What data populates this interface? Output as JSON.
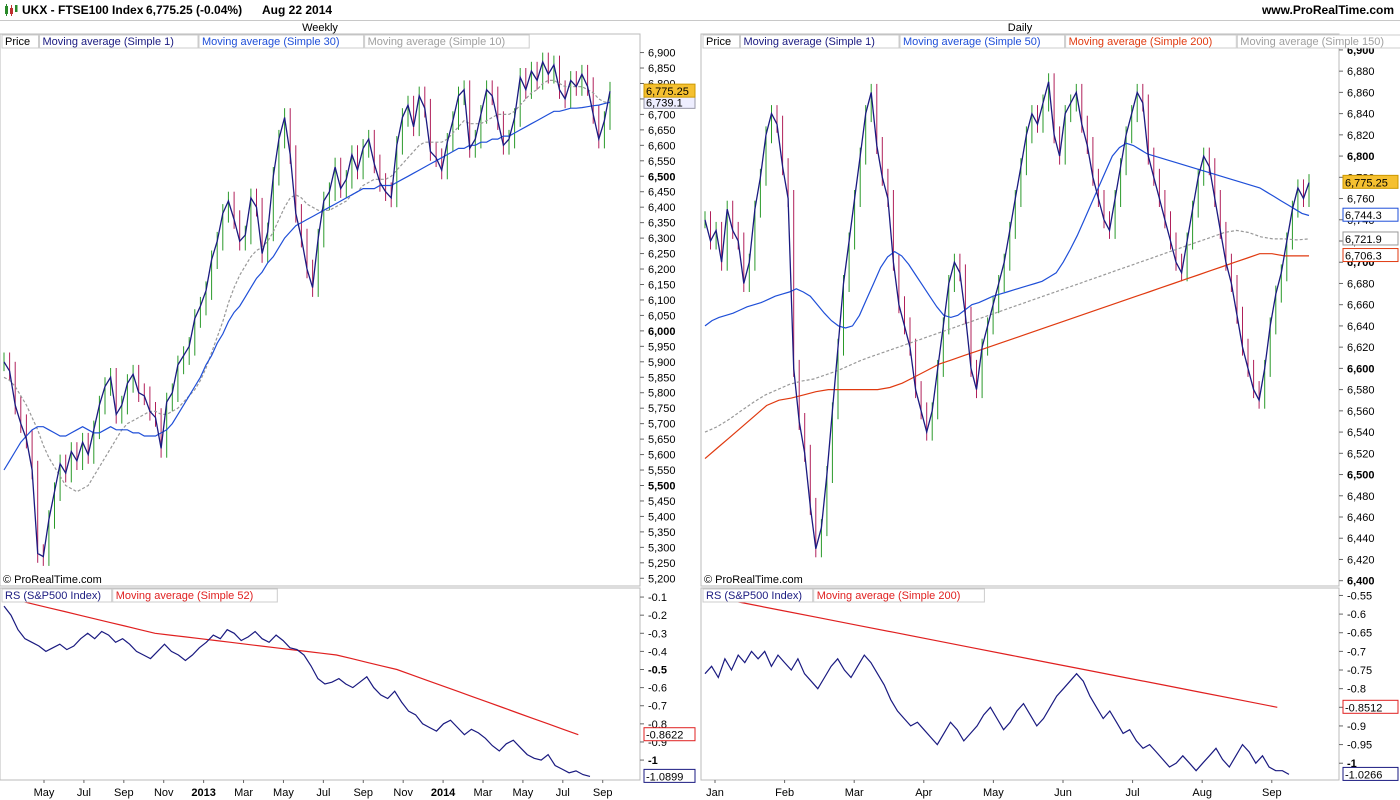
{
  "header": {
    "symbol": "UKX - FTSE100 Index",
    "quote": "6,775.25 (-0.04%)",
    "date": "Aug 22 2014",
    "site": "www.ProRealTime.com",
    "icon": "candlestick-chart-icon"
  },
  "chart_data": [
    {
      "id": "weekly",
      "type": "line",
      "title": "Weekly",
      "copyright": "© ProRealTime.com",
      "legend": [
        "Price",
        "Moving average (Simple 1)",
        "Moving average (Simple 30)",
        "Moving average (Simple 10)"
      ],
      "legend_colors": [
        "#000000",
        "#1a1a80",
        "#1f4fd8",
        "#a0a0a0"
      ],
      "ylim": [
        5175,
        6960
      ],
      "yticks": [
        "5,200",
        "5,250",
        "5,300",
        "5,350",
        "5,400",
        "5,450",
        "5,500",
        "5,550",
        "5,600",
        "5,650",
        "5,700",
        "5,750",
        "5,800",
        "5,850",
        "5,900",
        "5,950",
        "6,000",
        "6,050",
        "6,100",
        "6,150",
        "6,200",
        "6,250",
        "6,300",
        "6,350",
        "6,400",
        "6,450",
        "6,500",
        "6,550",
        "6,600",
        "6,650",
        "6,700",
        "6,750",
        "6,800",
        "6,850",
        "6,900"
      ],
      "ytick_values": [
        5200,
        5250,
        5300,
        5350,
        5400,
        5450,
        5500,
        5550,
        5600,
        5650,
        5700,
        5750,
        5800,
        5850,
        5900,
        5950,
        6000,
        6050,
        6100,
        6150,
        6200,
        6250,
        6300,
        6350,
        6400,
        6450,
        6500,
        6550,
        6600,
        6650,
        6700,
        6750,
        6800,
        6850,
        6900
      ],
      "bold_ticks": [
        "5,500",
        "6,000",
        "6,500"
      ],
      "price": [
        5900,
        5870,
        5760,
        5700,
        5650,
        5550,
        5280,
        5270,
        5390,
        5480,
        5570,
        5540,
        5610,
        5580,
        5640,
        5600,
        5680,
        5760,
        5820,
        5850,
        5730,
        5760,
        5830,
        5860,
        5800,
        5790,
        5740,
        5720,
        5620,
        5770,
        5800,
        5890,
        5920,
        5950,
        6040,
        6080,
        6130,
        6230,
        6290,
        6380,
        6420,
        6360,
        6290,
        6310,
        6430,
        6400,
        6250,
        6320,
        6500,
        6620,
        6690,
        6570,
        6380,
        6300,
        6200,
        6140,
        6300,
        6420,
        6450,
        6530,
        6460,
        6490,
        6570,
        6520,
        6590,
        6620,
        6540,
        6480,
        6450,
        6430,
        6600,
        6690,
        6730,
        6660,
        6760,
        6720,
        6580,
        6560,
        6520,
        6610,
        6680,
        6760,
        6780,
        6590,
        6620,
        6700,
        6780,
        6760,
        6680,
        6600,
        6620,
        6690,
        6820,
        6780,
        6840,
        6810,
        6870,
        6830,
        6860,
        6780,
        6750,
        6810,
        6790,
        6830,
        6790,
        6700,
        6620,
        6680,
        6775
      ],
      "ma30": [
        5550,
        5580,
        5610,
        5640,
        5660,
        5680,
        5690,
        5690,
        5680,
        5670,
        5660,
        5660,
        5670,
        5680,
        5690,
        5680,
        5670,
        5670,
        5680,
        5690,
        5680,
        5680,
        5680,
        5670,
        5670,
        5660,
        5660,
        5660,
        5670,
        5680,
        5700,
        5730,
        5760,
        5790,
        5820,
        5850,
        5890,
        5920,
        5960,
        5990,
        6030,
        6060,
        6080,
        6110,
        6140,
        6170,
        6190,
        6220,
        6240,
        6270,
        6300,
        6320,
        6340,
        6350,
        6360,
        6370,
        6380,
        6390,
        6400,
        6410,
        6420,
        6430,
        6440,
        6450,
        6460,
        6460,
        6460,
        6470,
        6470,
        6470,
        6480,
        6490,
        6500,
        6510,
        6520,
        6530,
        6540,
        6550,
        6560,
        6570,
        6580,
        6590,
        6590,
        6600,
        6600,
        6610,
        6610,
        6620,
        6620,
        6630,
        6630,
        6640,
        6650,
        6660,
        6670,
        6680,
        6690,
        6700,
        6710,
        6710,
        6715,
        6720,
        6720,
        6722,
        6725,
        6728,
        6730,
        6735,
        6739
      ],
      "ma10": [
        5850,
        5840,
        5820,
        5790,
        5760,
        5720,
        5680,
        5630,
        5590,
        5560,
        5530,
        5500,
        5490,
        5480,
        5490,
        5500,
        5530,
        5560,
        5590,
        5620,
        5650,
        5680,
        5700,
        5710,
        5720,
        5730,
        5740,
        5740,
        5730,
        5730,
        5740,
        5750,
        5770,
        5790,
        5810,
        5840,
        5880,
        5930,
        5980,
        6030,
        6090,
        6140,
        6180,
        6210,
        6240,
        6260,
        6270,
        6290,
        6320,
        6360,
        6400,
        6430,
        6440,
        6430,
        6410,
        6400,
        6390,
        6390,
        6390,
        6400,
        6410,
        6420,
        6440,
        6450,
        6470,
        6480,
        6490,
        6490,
        6490,
        6500,
        6520,
        6540,
        6560,
        6580,
        6600,
        6610,
        6610,
        6610,
        6610,
        6620,
        6640,
        6660,
        6680,
        6670,
        6670,
        6670,
        6680,
        6690,
        6700,
        6700,
        6700,
        6710,
        6730,
        6750,
        6770,
        6780,
        6800,
        6810,
        6810,
        6800,
        6790,
        6790,
        6790,
        6790,
        6780,
        6770,
        6750,
        6740,
        6739
      ],
      "last_price_label": "6,775.25",
      "last_ma_label": "6,739.1",
      "rs_legend": [
        "RS (S&P500 Index)",
        "Moving average (Simple 52)"
      ],
      "rs_colors": [
        "#1a1a80",
        "#e02020"
      ],
      "rs_ylim": [
        -1.11,
        -0.05
      ],
      "rs_yticks": [
        "-0.1",
        "-0.2",
        "-0.3",
        "-0.4",
        "-0.5",
        "-0.6",
        "-0.7",
        "-0.8",
        "-0.9",
        "-1"
      ],
      "rs_ytick_values": [
        -0.1,
        -0.2,
        -0.3,
        -0.4,
        -0.5,
        -0.6,
        -0.7,
        -0.8,
        -0.9,
        -1.0
      ],
      "rs_bold_ticks": [
        "-0.5",
        "-1"
      ],
      "rs": [
        -0.15,
        -0.2,
        -0.28,
        -0.33,
        -0.35,
        -0.37,
        -0.4,
        -0.38,
        -0.36,
        -0.39,
        -0.37,
        -0.33,
        -0.3,
        -0.33,
        -0.29,
        -0.31,
        -0.35,
        -0.33,
        -0.36,
        -0.4,
        -0.42,
        -0.44,
        -0.4,
        -0.36,
        -0.4,
        -0.42,
        -0.45,
        -0.42,
        -0.38,
        -0.35,
        -0.31,
        -0.33,
        -0.28,
        -0.3,
        -0.34,
        -0.32,
        -0.29,
        -0.33,
        -0.35,
        -0.31,
        -0.34,
        -0.38,
        -0.39,
        -0.42,
        -0.48,
        -0.55,
        -0.58,
        -0.57,
        -0.55,
        -0.58,
        -0.6,
        -0.57,
        -0.54,
        -0.6,
        -0.64,
        -0.66,
        -0.62,
        -0.68,
        -0.73,
        -0.75,
        -0.8,
        -0.82,
        -0.84,
        -0.8,
        -0.78,
        -0.82,
        -0.86,
        -0.83,
        -0.85,
        -0.88,
        -0.92,
        -0.95,
        -0.91,
        -0.89,
        -0.93,
        -0.97,
        -0.99,
        -1.0,
        -0.97,
        -1.03,
        -1.05,
        -1.07,
        -1.06,
        -1.08,
        -1.09
      ],
      "rs_ma": [
        -0.1,
        -0.12,
        -0.14,
        -0.16,
        -0.18,
        -0.2,
        -0.22,
        -0.24,
        -0.26,
        -0.28,
        -0.3,
        -0.31,
        -0.32,
        -0.33,
        -0.34,
        -0.35,
        -0.36,
        -0.37,
        -0.38,
        -0.39,
        -0.4,
        -0.41,
        -0.42,
        -0.44,
        -0.46,
        -0.48,
        -0.5,
        -0.53,
        -0.56,
        -0.59,
        -0.62,
        -0.65,
        -0.68,
        -0.71,
        -0.74,
        -0.77,
        -0.8,
        -0.83,
        -0.86
      ],
      "rs_last_label": "-1.0899",
      "rs_ma_last_label": "-0.8622",
      "xticks": [
        "May",
        "Jul",
        "Sep",
        "Nov",
        "2013",
        "Mar",
        "May",
        "Jul",
        "Sep",
        "Nov",
        "2014",
        "Mar",
        "May",
        "Jul",
        "Sep"
      ],
      "bold_xticks": [
        "2013",
        "2014"
      ]
    },
    {
      "id": "daily",
      "type": "line",
      "title": "Daily",
      "copyright": "© ProRealTime.com",
      "legend": [
        "Price",
        "Moving average (Simple 1)",
        "Moving average (Simple 50)",
        "Moving average (Simple 200)",
        "Moving average (Simple 150)"
      ],
      "legend_colors": [
        "#000000",
        "#1a1a80",
        "#1f4fd8",
        "#e03a10",
        "#a0a0a0"
      ],
      "ylim": [
        6395,
        6915
      ],
      "yticks": [
        "6,400",
        "6,420",
        "6,440",
        "6,460",
        "6,480",
        "6,500",
        "6,520",
        "6,540",
        "6,560",
        "6,580",
        "6,600",
        "6,620",
        "6,640",
        "6,660",
        "6,680",
        "6,700",
        "6,720",
        "6,740",
        "6,760",
        "6,780",
        "6,800",
        "6,820",
        "6,840",
        "6,860",
        "6,880",
        "6,900"
      ],
      "ytick_values": [
        6400,
        6420,
        6440,
        6460,
        6480,
        6500,
        6520,
        6540,
        6560,
        6580,
        6600,
        6620,
        6640,
        6660,
        6680,
        6700,
        6720,
        6740,
        6760,
        6780,
        6800,
        6820,
        6840,
        6860,
        6880,
        6900
      ],
      "bold_ticks": [
        "6,400",
        "6,500",
        "6,600",
        "6,700",
        "6,800",
        "6,900"
      ],
      "price": [
        6740,
        6720,
        6730,
        6700,
        6750,
        6730,
        6720,
        6680,
        6700,
        6750,
        6780,
        6820,
        6840,
        6830,
        6790,
        6760,
        6600,
        6550,
        6520,
        6470,
        6430,
        6450,
        6500,
        6560,
        6620,
        6680,
        6720,
        6760,
        6800,
        6840,
        6860,
        6810,
        6780,
        6760,
        6700,
        6660,
        6640,
        6620,
        6580,
        6560,
        6540,
        6560,
        6600,
        6640,
        6680,
        6700,
        6690,
        6650,
        6600,
        6580,
        6620,
        6640,
        6660,
        6680,
        6700,
        6730,
        6760,
        6790,
        6820,
        6840,
        6830,
        6850,
        6870,
        6820,
        6800,
        6840,
        6850,
        6860,
        6830,
        6810,
        6780,
        6760,
        6740,
        6730,
        6760,
        6790,
        6820,
        6840,
        6860,
        6850,
        6800,
        6780,
        6760,
        6740,
        6720,
        6700,
        6690,
        6720,
        6750,
        6780,
        6800,
        6790,
        6760,
        6730,
        6700,
        6680,
        6650,
        6620,
        6600,
        6580,
        6570,
        6600,
        6640,
        6670,
        6690,
        6720,
        6750,
        6770,
        6760,
        6775
      ],
      "ma50": [
        6640,
        6645,
        6648,
        6650,
        6652,
        6655,
        6658,
        6660,
        6662,
        6665,
        6668,
        6670,
        6672,
        6675,
        6672,
        6668,
        6660,
        6652,
        6645,
        6640,
        6638,
        6640,
        6650,
        6665,
        6680,
        6695,
        6705,
        6710,
        6706,
        6698,
        6688,
        6678,
        6668,
        6658,
        6650,
        6648,
        6650,
        6655,
        6660,
        6662,
        6665,
        6668,
        6670,
        6672,
        6674,
        6676,
        6678,
        6680,
        6682,
        6686,
        6690,
        6700,
        6712,
        6725,
        6740,
        6755,
        6770,
        6785,
        6800,
        6808,
        6812,
        6810,
        6806,
        6802,
        6800,
        6798,
        6796,
        6794,
        6792,
        6790,
        6788,
        6786,
        6784,
        6782,
        6780,
        6778,
        6776,
        6774,
        6772,
        6770,
        6766,
        6762,
        6758,
        6754,
        6750,
        6746,
        6744
      ],
      "ma150": [
        6540,
        6545,
        6552,
        6560,
        6568,
        6575,
        6580,
        6585,
        6588,
        6590,
        6594,
        6598,
        6603,
        6608,
        6612,
        6616,
        6620,
        6624,
        6628,
        6632,
        6636,
        6640,
        6644,
        6648,
        6652,
        6656,
        6660,
        6664,
        6668,
        6672,
        6676,
        6680,
        6684,
        6688,
        6692,
        6696,
        6700,
        6704,
        6708,
        6712,
        6716,
        6720,
        6724,
        6728,
        6730,
        6728,
        6724,
        6722,
        6722,
        6721,
        6722
      ],
      "ma200": [
        6515,
        6525,
        6535,
        6545,
        6555,
        6565,
        6570,
        6572,
        6575,
        6578,
        6580,
        6580,
        6580,
        6580,
        6580,
        6582,
        6586,
        6592,
        6598,
        6604,
        6608,
        6612,
        6616,
        6620,
        6624,
        6628,
        6632,
        6636,
        6640,
        6644,
        6648,
        6652,
        6656,
        6660,
        6664,
        6668,
        6672,
        6676,
        6680,
        6684,
        6688,
        6692,
        6696,
        6700,
        6704,
        6708,
        6708,
        6706,
        6706,
        6706
      ],
      "last_price_label": "6,775.25",
      "ma50_label": "6,744.3",
      "ma150_label": "6,721.9",
      "ma200_label": "6,706.3",
      "rs_legend": [
        "RS (S&P500 Index)",
        "Moving average (Simple 200)"
      ],
      "rs_colors": [
        "#1a1a80",
        "#e02020"
      ],
      "rs_ylim": [
        -1.045,
        -0.53
      ],
      "rs_yticks": [
        "-0.55",
        "-0.6",
        "-0.65",
        "-0.7",
        "-0.75",
        "-0.8",
        "-0.85",
        "-0.9",
        "-0.95",
        "-1"
      ],
      "rs_ytick_values": [
        -0.55,
        -0.6,
        -0.65,
        -0.7,
        -0.75,
        -0.8,
        -0.85,
        -0.9,
        -0.95,
        -1.0
      ],
      "rs_bold_ticks": [
        "-1"
      ],
      "rs": [
        -0.76,
        -0.74,
        -0.77,
        -0.72,
        -0.75,
        -0.71,
        -0.73,
        -0.7,
        -0.72,
        -0.7,
        -0.74,
        -0.71,
        -0.73,
        -0.75,
        -0.72,
        -0.76,
        -0.78,
        -0.8,
        -0.77,
        -0.74,
        -0.72,
        -0.75,
        -0.77,
        -0.74,
        -0.71,
        -0.73,
        -0.76,
        -0.79,
        -0.83,
        -0.86,
        -0.88,
        -0.9,
        -0.89,
        -0.91,
        -0.93,
        -0.95,
        -0.92,
        -0.89,
        -0.91,
        -0.94,
        -0.92,
        -0.9,
        -0.87,
        -0.85,
        -0.88,
        -0.91,
        -0.89,
        -0.86,
        -0.84,
        -0.87,
        -0.9,
        -0.88,
        -0.85,
        -0.82,
        -0.8,
        -0.78,
        -0.76,
        -0.78,
        -0.82,
        -0.85,
        -0.88,
        -0.86,
        -0.89,
        -0.92,
        -0.91,
        -0.94,
        -0.96,
        -0.95,
        -0.97,
        -0.99,
        -1.01,
        -1.0,
        -0.98,
        -1.0,
        -1.02,
        -1.0,
        -0.98,
        -0.96,
        -0.99,
        -1.01,
        -0.98,
        -0.95,
        -0.97,
        -1.0,
        -0.98,
        -1.01,
        -1.02,
        -1.02,
        -1.03
      ],
      "rs_ma": [
        -0.55,
        -0.57,
        -0.59,
        -0.61,
        -0.63,
        -0.65,
        -0.67,
        -0.69,
        -0.71,
        -0.73,
        -0.75,
        -0.77,
        -0.79,
        -0.81,
        -0.83,
        -0.85
      ],
      "rs_last_label": "-1.0266",
      "rs_ma_last_label": "-0.8512",
      "xticks": [
        "Jan",
        "Feb",
        "Mar",
        "Apr",
        "May",
        "Jun",
        "Jul",
        "Aug",
        "Sep"
      ]
    }
  ]
}
